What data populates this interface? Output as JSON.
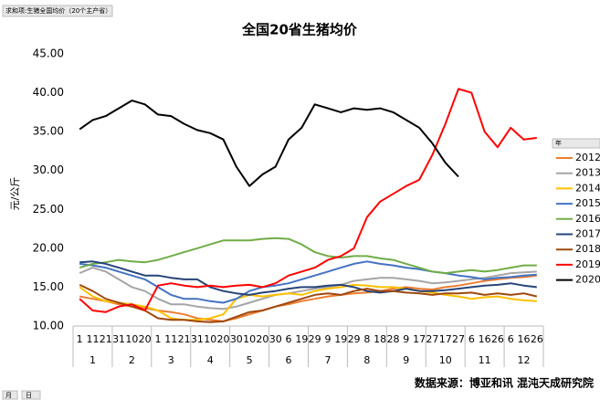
{
  "filter_button": "求和项:生猪全国均价（20个主产省）",
  "axis_buttons": [
    "月",
    "日"
  ],
  "source": "数据来源：博亚和讯 混沌天成研究院",
  "chart_data": {
    "type": "line",
    "title": "全国20省生猪均价",
    "y_label": "元/公斤",
    "legend_title": "年",
    "legend": "right",
    "months": [
      "1",
      "2",
      "3",
      "4",
      "5",
      "6",
      "7",
      "8",
      "9",
      "10",
      "11",
      "12"
    ],
    "categories": [
      "1",
      "11",
      "21",
      "31",
      "10",
      "20",
      "1",
      "11",
      "21",
      "31",
      "10",
      "20",
      "30",
      "10",
      "20",
      "30",
      "6",
      "19",
      "29",
      "9",
      "19",
      "29",
      "8",
      "18",
      "28",
      "9",
      "17",
      "27",
      "17",
      "27",
      "6",
      "16",
      "26",
      "6",
      "16",
      "26"
    ],
    "ylim": [
      10,
      45
    ],
    "yticks": [
      {
        "value": 10,
        "label": "10.00"
      },
      {
        "value": 15,
        "label": "15.00"
      },
      {
        "value": 20,
        "label": "20.00"
      },
      {
        "value": 25,
        "label": "25.00"
      },
      {
        "value": 30,
        "label": "30.00"
      },
      {
        "value": 35,
        "label": "35.00"
      },
      {
        "value": 40,
        "label": "40.00"
      },
      {
        "value": 45,
        "label": "45.00"
      }
    ],
    "series": [
      {
        "name": "2012",
        "color": "#ed7d31",
        "values": [
          13.8,
          13.5,
          13.2,
          12.8,
          12.5,
          12.3,
          12.0,
          11.8,
          11.5,
          11.0,
          10.8,
          10.6,
          11.0,
          11.5,
          12.0,
          12.5,
          12.8,
          13.2,
          13.5,
          13.8,
          14.0,
          14.2,
          14.3,
          14.5,
          14.8,
          15.0,
          14.8,
          14.7,
          15.0,
          15.2,
          15.5,
          15.8,
          16.0,
          16.2,
          16.3,
          16.5
        ]
      },
      {
        "name": "2013",
        "color": "#a5a5a5",
        "values": [
          16.8,
          17.5,
          17.0,
          16.0,
          15.0,
          14.5,
          13.5,
          12.8,
          12.8,
          12.5,
          12.3,
          12.2,
          12.5,
          13.0,
          13.5,
          14.0,
          14.2,
          14.5,
          14.8,
          15.0,
          15.3,
          15.8,
          16.0,
          16.2,
          16.2,
          16.0,
          15.8,
          15.5,
          15.6,
          15.8,
          16.0,
          16.2,
          16.5,
          16.8,
          16.9,
          17.0
        ]
      },
      {
        "name": "2014",
        "color": "#ffc000",
        "values": [
          15.0,
          13.8,
          13.2,
          13.0,
          12.8,
          12.5,
          12.0,
          11.0,
          10.8,
          10.8,
          11.0,
          11.5,
          13.5,
          14.0,
          13.8,
          14.0,
          14.2,
          14.0,
          14.5,
          14.8,
          15.0,
          15.3,
          15.2,
          15.0,
          15.0,
          14.8,
          14.5,
          14.3,
          14.0,
          13.8,
          13.5,
          13.7,
          13.8,
          13.5,
          13.3,
          13.2
        ]
      },
      {
        "name": "2015",
        "color": "#4472c4",
        "values": [
          18.0,
          17.8,
          17.5,
          17.0,
          16.5,
          16.0,
          15.0,
          14.0,
          13.5,
          13.5,
          13.2,
          13.0,
          13.5,
          14.5,
          15.0,
          15.2,
          15.5,
          16.0,
          16.5,
          17.0,
          17.5,
          18.0,
          18.3,
          18.0,
          17.8,
          17.5,
          17.3,
          17.0,
          16.8,
          16.5,
          16.3,
          16.0,
          16.2,
          16.3,
          16.5,
          16.6
        ]
      },
      {
        "name": "2016",
        "color": "#70ad47",
        "values": [
          17.5,
          18.0,
          18.2,
          18.5,
          18.3,
          18.2,
          18.5,
          19.0,
          19.5,
          20.0,
          20.5,
          21.0,
          21.0,
          21.0,
          21.2,
          21.3,
          21.2,
          20.5,
          19.5,
          19.0,
          18.8,
          19.0,
          19.0,
          18.7,
          18.5,
          18.0,
          17.5,
          17.0,
          16.8,
          17.0,
          17.2,
          17.0,
          17.2,
          17.5,
          17.8,
          17.8
        ]
      },
      {
        "name": "2017",
        "color": "#264478",
        "values": [
          18.2,
          18.3,
          18.0,
          17.5,
          17.0,
          16.5,
          16.5,
          16.2,
          16.0,
          16.0,
          15.0,
          14.5,
          14.2,
          14.0,
          14.3,
          14.5,
          14.8,
          15.0,
          15.0,
          15.2,
          15.3,
          15.0,
          14.5,
          14.3,
          14.5,
          14.8,
          14.5,
          14.5,
          14.6,
          14.8,
          15.0,
          15.2,
          15.3,
          15.5,
          15.2,
          15.0
        ]
      },
      {
        "name": "2018",
        "color": "#9e480e",
        "values": [
          15.3,
          14.5,
          13.5,
          13.0,
          12.5,
          12.0,
          11.0,
          10.8,
          10.8,
          10.6,
          10.5,
          10.6,
          11.2,
          11.8,
          12.0,
          12.5,
          13.0,
          13.5,
          14.0,
          14.2,
          14.0,
          14.5,
          14.8,
          14.5,
          14.5,
          14.3,
          14.2,
          14.0,
          14.2,
          14.2,
          14.3,
          14.0,
          14.2,
          14.0,
          14.2,
          13.8
        ]
      },
      {
        "name": "2019",
        "color": "#ff0000",
        "values": [
          13.5,
          12.0,
          11.8,
          12.5,
          12.8,
          12.0,
          15.2,
          15.5,
          15.2,
          15.0,
          15.2,
          15.0,
          15.2,
          15.3,
          15.0,
          15.5,
          16.5,
          17.0,
          17.5,
          18.5,
          19.0,
          20.0,
          24.0,
          26.0,
          27.0,
          28.0,
          28.8,
          32.0,
          36.0,
          40.5,
          40.0,
          35.0,
          33.0,
          35.5,
          34.0,
          34.2
        ]
      },
      {
        "name": "2020",
        "color": "#000000",
        "values": [
          35.3,
          36.5,
          37.0,
          38.0,
          39.0,
          38.5,
          37.2,
          37.0,
          36.0,
          35.2,
          34.8,
          34.0,
          30.5,
          28.0,
          29.5,
          30.5,
          34.0,
          35.5,
          38.5,
          38.0,
          37.5,
          38.0,
          37.8,
          38.0,
          37.5,
          36.5,
          35.5,
          33.5,
          31.0,
          29.2,
          null,
          null,
          null,
          null,
          null,
          null
        ]
      }
    ]
  }
}
